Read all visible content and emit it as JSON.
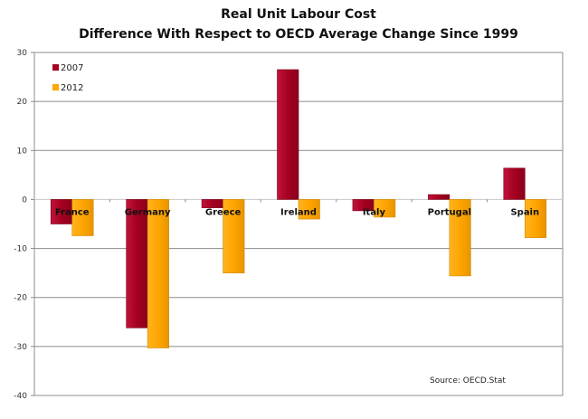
{
  "chart_data": {
    "type": "bar",
    "title": "Real Unit Labour Cost",
    "subtitle": "Difference With Respect to OECD Average Change Since 1999",
    "xlabel": "",
    "ylabel": "",
    "ylim": [
      -40,
      30
    ],
    "yticks": [
      30,
      20,
      10,
      0,
      -10,
      -20,
      -30,
      -40
    ],
    "grid": true,
    "legend": "top-left",
    "categories": [
      "France",
      "Germany",
      "Greece",
      "Ireland",
      "Italy",
      "Portugal",
      "Spain"
    ],
    "series": [
      {
        "name": "2007",
        "color": "#A50021",
        "values": [
          -5.0,
          -26.2,
          -1.7,
          26.5,
          -2.3,
          1.0,
          6.4
        ]
      },
      {
        "name": "2012",
        "color": "#FFA500",
        "values": [
          -7.4,
          -30.3,
          -15.0,
          -4.0,
          -3.6,
          -15.6,
          -7.8
        ]
      }
    ],
    "annotation": "Source: OECD.Stat"
  }
}
